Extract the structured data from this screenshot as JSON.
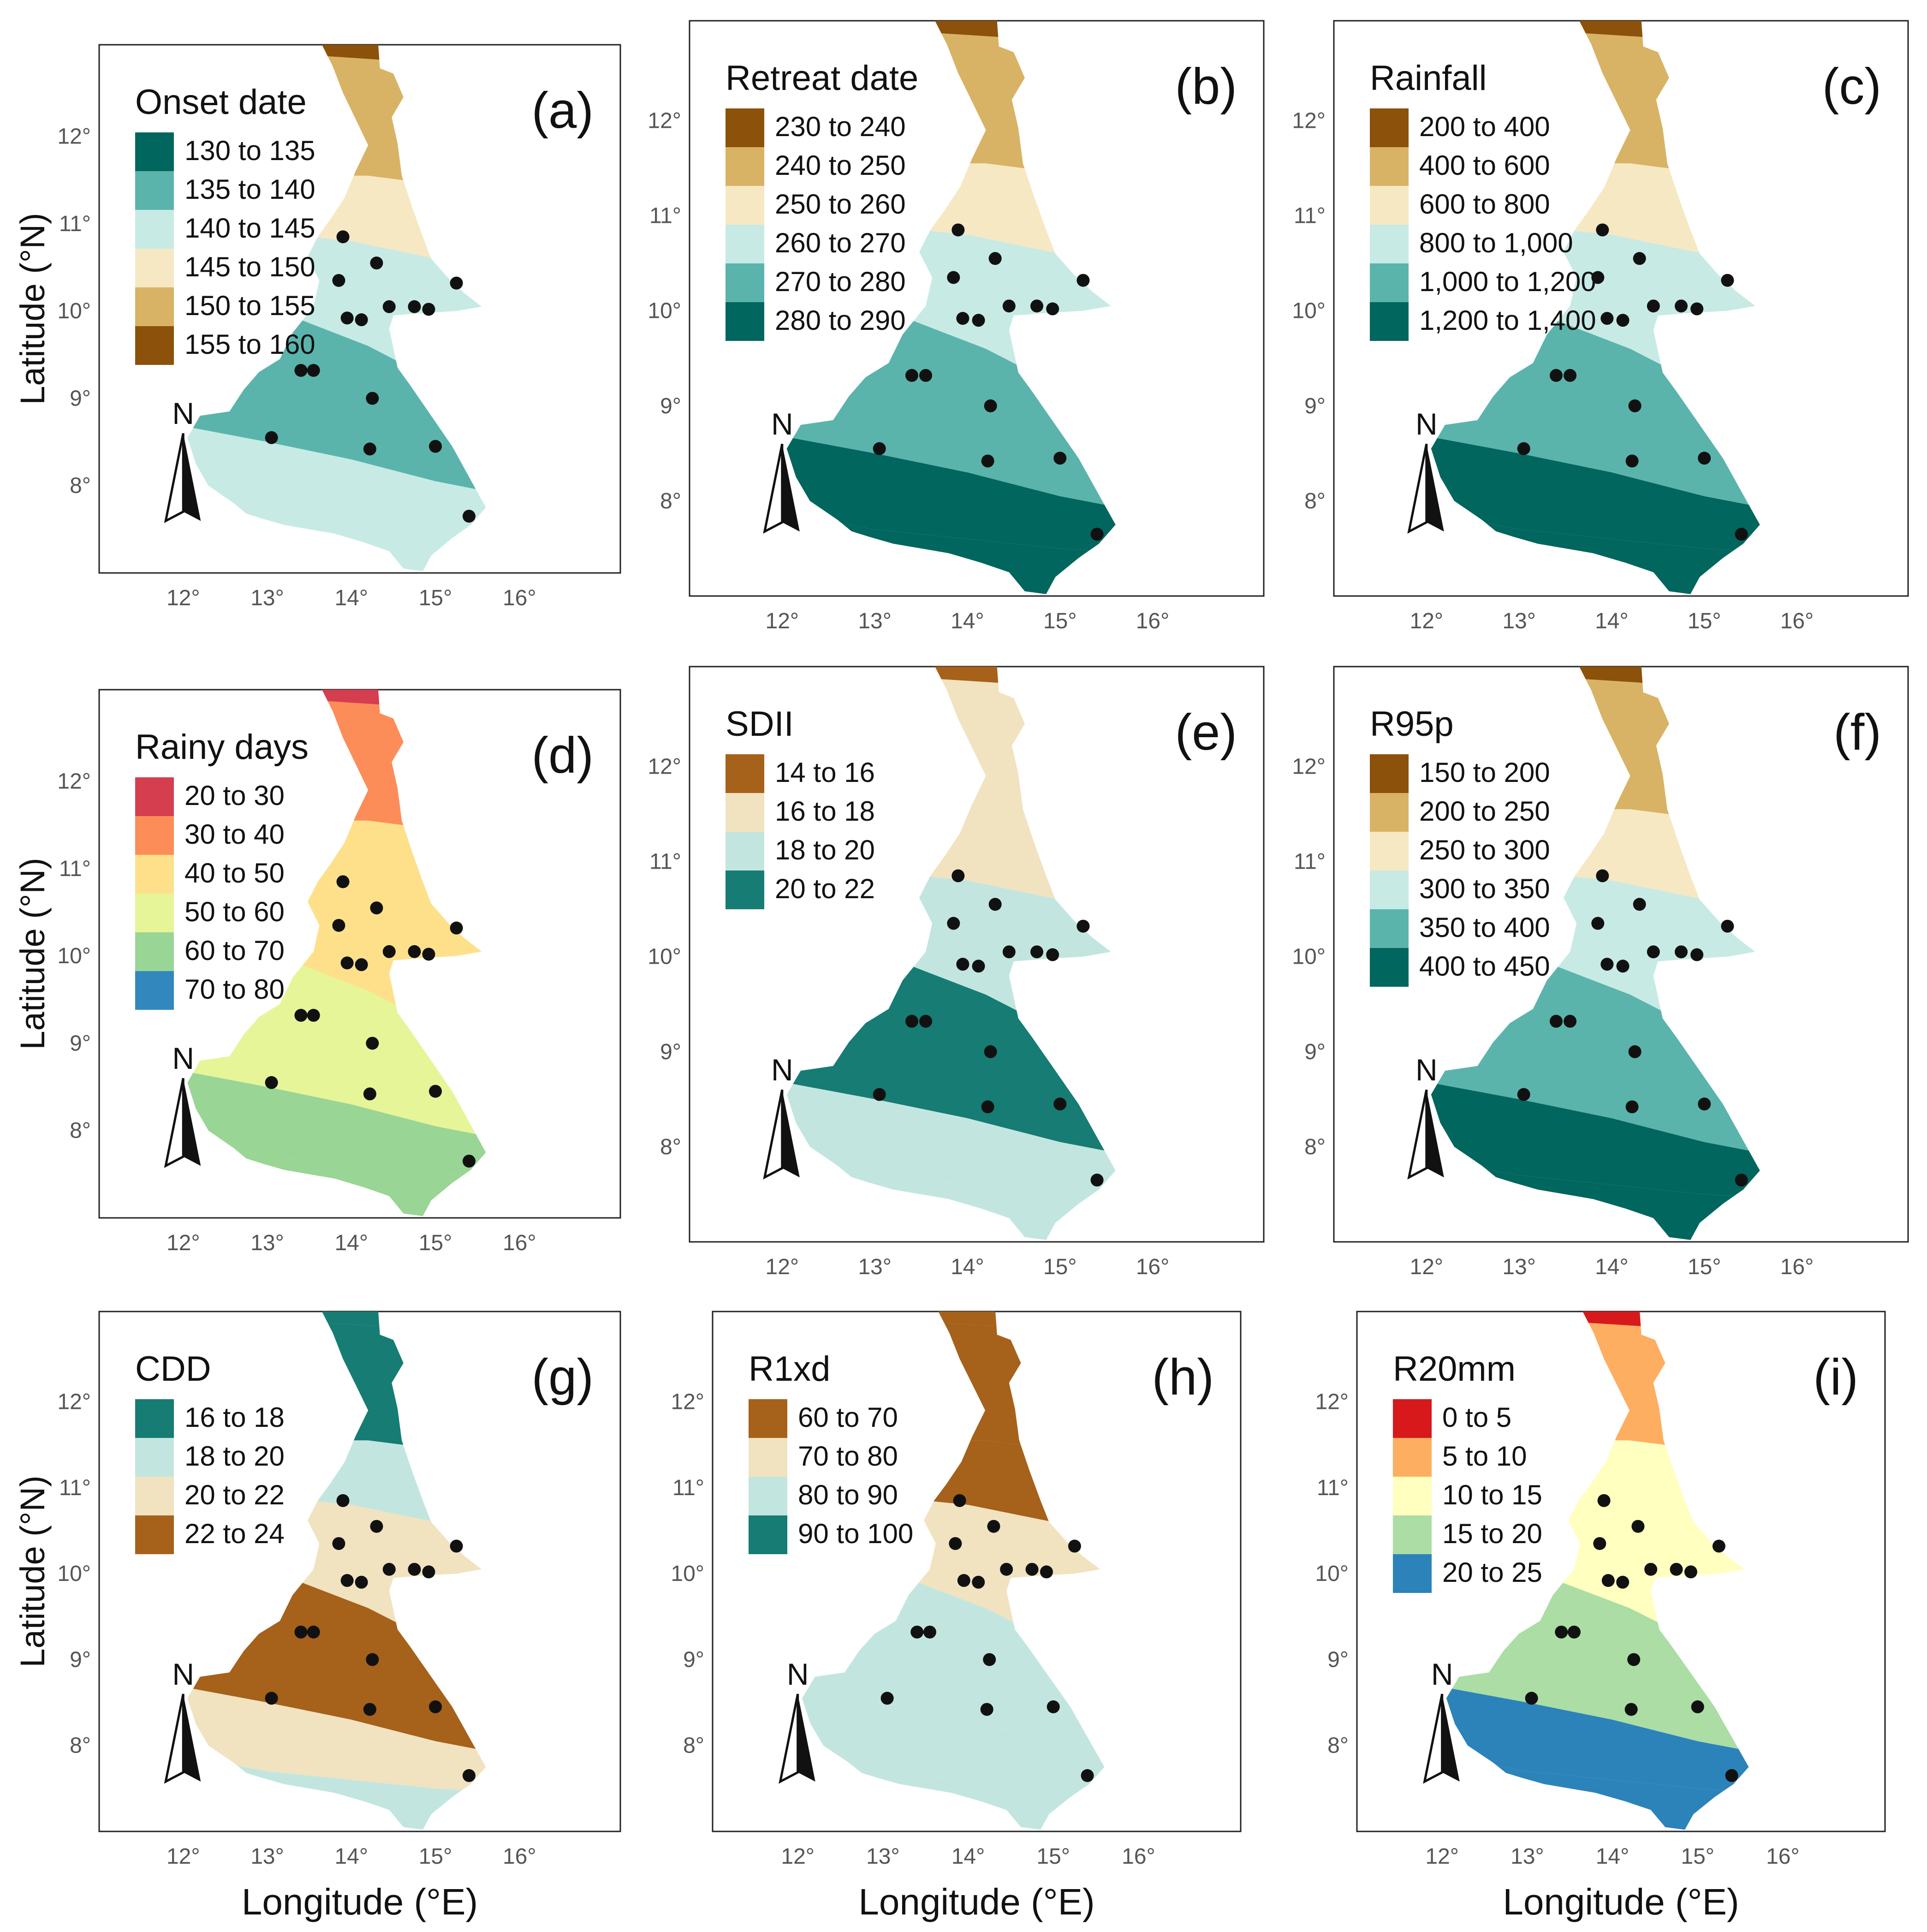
{
  "figure": {
    "xlabel": "Longitude (°E)",
    "ylabel": "Latitude (°N)",
    "north_label": "N",
    "lon_ticks": [
      "12°",
      "13°",
      "14°",
      "15°",
      "16°"
    ],
    "lat_ticks": [
      "8°",
      "9°",
      "10°",
      "11°",
      "12°"
    ],
    "stations": [
      [
        13.05,
        8.55
      ],
      [
        14.22,
        8.42
      ],
      [
        15.0,
        8.45
      ],
      [
        15.4,
        7.65
      ],
      [
        13.4,
        9.32
      ],
      [
        13.55,
        9.32
      ],
      [
        14.25,
        9.0
      ],
      [
        13.95,
        9.92
      ],
      [
        14.12,
        9.9
      ],
      [
        14.45,
        10.05
      ],
      [
        14.75,
        10.05
      ],
      [
        14.92,
        10.02
      ],
      [
        13.85,
        10.35
      ],
      [
        14.3,
        10.55
      ],
      [
        13.9,
        10.85
      ],
      [
        15.25,
        10.32
      ]
    ]
  },
  "panels": [
    {
      "letter": "(a)",
      "title": "Onset date",
      "legend": [
        {
          "label": "130 to 135",
          "color": "#01665e"
        },
        {
          "label": "135 to 140",
          "color": "#5ab4ac"
        },
        {
          "label": "140 to 145",
          "color": "#c7eae5"
        },
        {
          "label": "145 to 150",
          "color": "#f6e8c3"
        },
        {
          "label": "150 to 155",
          "color": "#d8b365"
        },
        {
          "label": "155 to 160",
          "color": "#8c510a"
        }
      ]
    },
    {
      "letter": "(b)",
      "title": "Retreat date",
      "legend": [
        {
          "label": "230 to 240",
          "color": "#8c510a"
        },
        {
          "label": "240 to 250",
          "color": "#d8b365"
        },
        {
          "label": "250 to 260",
          "color": "#f6e8c3"
        },
        {
          "label": "260 to 270",
          "color": "#c7eae5"
        },
        {
          "label": "270 to 280",
          "color": "#5ab4ac"
        },
        {
          "label": "280 to 290",
          "color": "#01665e"
        }
      ]
    },
    {
      "letter": "(c)",
      "title": "Rainfall",
      "legend": [
        {
          "label": "200 to 400",
          "color": "#8c510a"
        },
        {
          "label": "400 to 600",
          "color": "#d8b365"
        },
        {
          "label": "600 to 800",
          "color": "#f6e8c3"
        },
        {
          "label": "800 to 1,000",
          "color": "#c7eae5"
        },
        {
          "label": "1,000 to 1,200",
          "color": "#5ab4ac"
        },
        {
          "label": "1,200 to 1,400",
          "color": "#01665e"
        }
      ]
    },
    {
      "letter": "(d)",
      "title": "Rainy days",
      "legend": [
        {
          "label": "20 to 30",
          "color": "#d53e4f"
        },
        {
          "label": "30 to 40",
          "color": "#fc8d59"
        },
        {
          "label": "40 to 50",
          "color": "#fee08b"
        },
        {
          "label": "50 to 60",
          "color": "#e6f598"
        },
        {
          "label": "60 to 70",
          "color": "#99d594"
        },
        {
          "label": "70 to 80",
          "color": "#3288bd"
        }
      ]
    },
    {
      "letter": "(e)",
      "title": "SDII",
      "legend": [
        {
          "label": "14 to 16",
          "color": "#a6611a"
        },
        {
          "label": "16 to 18",
          "color": "#f1e2c0"
        },
        {
          "label": "18 to 20",
          "color": "#c2e6df"
        },
        {
          "label": "20 to 22",
          "color": "#167c74"
        }
      ]
    },
    {
      "letter": "(f)",
      "title": "R95p",
      "legend": [
        {
          "label": "150 to 200",
          "color": "#8c510a"
        },
        {
          "label": "200 to 250",
          "color": "#d8b365"
        },
        {
          "label": "250 to 300",
          "color": "#f6e8c3"
        },
        {
          "label": "300 to 350",
          "color": "#c7eae5"
        },
        {
          "label": "350 to 400",
          "color": "#5ab4ac"
        },
        {
          "label": "400 to 450",
          "color": "#01665e"
        }
      ]
    },
    {
      "letter": "(g)",
      "title": "CDD",
      "legend": [
        {
          "label": "16 to 18",
          "color": "#167c74"
        },
        {
          "label": "18 to 20",
          "color": "#c2e6df"
        },
        {
          "label": "20 to 22",
          "color": "#f1e2c0"
        },
        {
          "label": "22 to 24",
          "color": "#a6611a"
        }
      ]
    },
    {
      "letter": "(h)",
      "title": "R1xd",
      "legend": [
        {
          "label": "60 to 70",
          "color": "#a6611a"
        },
        {
          "label": "70 to 80",
          "color": "#f1e2c0"
        },
        {
          "label": "80 to 90",
          "color": "#c2e6df"
        },
        {
          "label": "90 to 100",
          "color": "#167c74"
        }
      ]
    },
    {
      "letter": "(i)",
      "title": "R20mm",
      "legend": [
        {
          "label": "0 to 5",
          "color": "#d7191c"
        },
        {
          "label": "5 to 10",
          "color": "#fdae61"
        },
        {
          "label": "10 to 15",
          "color": "#ffffbf"
        },
        {
          "label": "15 to 20",
          "color": "#abdda4"
        },
        {
          "label": "20 to 25",
          "color": "#2b83ba"
        }
      ]
    }
  ]
}
